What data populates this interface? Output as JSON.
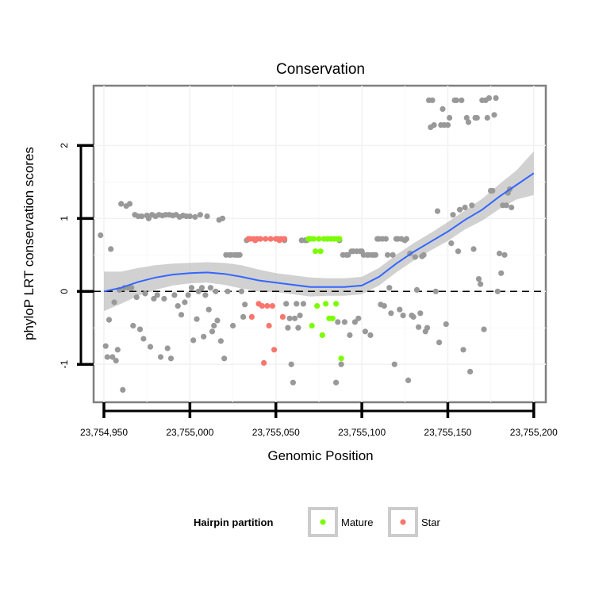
{
  "chart_data": {
    "type": "scatter",
    "title": "Conservation",
    "xlabel": "Genomic Position",
    "ylabel": "phyloP LRT conservation scores",
    "xlim": [
      23754944,
      23755207
    ],
    "ylim": [
      -1.52,
      2.82
    ],
    "x_ticks": [
      23754950,
      23755000,
      23755050,
      23755100,
      23755150,
      23755200
    ],
    "x_tick_labels": [
      "23,754,950",
      "23,755,000",
      "23,755,050",
      "23,755,100",
      "23,755,150",
      "23,755,200"
    ],
    "y_ticks": [
      -1,
      0,
      1,
      2
    ],
    "y_tick_labels": [
      "-1",
      "0",
      "1",
      "2"
    ],
    "reference_line": {
      "y": 0,
      "style": "dashed"
    },
    "legend": {
      "title": "Hairpin partition",
      "position": "bottom",
      "entries": [
        {
          "label": "Mature",
          "color": "#7cfc00"
        },
        {
          "label": "Star",
          "color": "#f8766d"
        }
      ]
    },
    "colors": {
      "other": "#999999",
      "mature": "#7cfc00",
      "star": "#f8766d",
      "smooth_line": "#3366ff",
      "confidence_band": "#bdbdbd",
      "panel_border": "#7f7f7f"
    },
    "series": [
      {
        "name": "Other",
        "points": [
          [
            23754948,
            0.77
          ],
          [
            23754951,
            -0.75
          ],
          [
            23754952,
            -0.9
          ],
          [
            23754953,
            -0.39
          ],
          [
            23754954,
            0.58
          ],
          [
            23754955,
            -0.9
          ],
          [
            23754956,
            -0.15
          ],
          [
            23754957,
            -0.95
          ],
          [
            23754958,
            -0.8
          ],
          [
            23754959,
            0.02
          ],
          [
            23754960,
            1.2
          ],
          [
            23754961,
            -1.35
          ],
          [
            23754962,
            0.05
          ],
          [
            23754963,
            1.17
          ],
          [
            23754964,
            0.05
          ],
          [
            23754965,
            1.2
          ],
          [
            23754966,
            0.05
          ],
          [
            23754967,
            -0.47
          ],
          [
            23754968,
            1.05
          ],
          [
            23754969,
            -0.08
          ],
          [
            23754970,
            1.03
          ],
          [
            23754971,
            -0.52
          ],
          [
            23754972,
            1.03
          ],
          [
            23754973,
            -0.65
          ],
          [
            23754974,
            -0.03
          ],
          [
            23754975,
            1.04
          ],
          [
            23754976,
            1.0
          ],
          [
            23754977,
            -0.76
          ],
          [
            23754978,
            1.05
          ],
          [
            23754979,
            -0.1
          ],
          [
            23754980,
            1.03
          ],
          [
            23754981,
            -0.05
          ],
          [
            23754982,
            1.05
          ],
          [
            23754983,
            -0.9
          ],
          [
            23754984,
            1.04
          ],
          [
            23754985,
            -0.1
          ],
          [
            23754986,
            1.05
          ],
          [
            23754987,
            -0.78
          ],
          [
            23754988,
            1.05
          ],
          [
            23754989,
            -0.92
          ],
          [
            23754990,
            1.04
          ],
          [
            23754991,
            -0.05
          ],
          [
            23754992,
            1.05
          ],
          [
            23754993,
            -0.2
          ],
          [
            23754994,
            1.02
          ],
          [
            23754995,
            -0.32
          ],
          [
            23754996,
            1.04
          ],
          [
            23754997,
            -0.15
          ],
          [
            23754998,
            1.03
          ],
          [
            23754999,
            -0.05
          ],
          [
            23755000,
            1.03
          ],
          [
            23755001,
            0.05
          ],
          [
            23755002,
            -0.67
          ],
          [
            23755003,
            1.02
          ],
          [
            23755004,
            -0.38
          ],
          [
            23755005,
            0.0
          ],
          [
            23755006,
            1.05
          ],
          [
            23755007,
            0.05
          ],
          [
            23755008,
            -0.62
          ],
          [
            23755009,
            -0.05
          ],
          [
            23755010,
            1.03
          ],
          [
            23755011,
            -0.25
          ],
          [
            23755012,
            0.05
          ],
          [
            23755013,
            -0.55
          ],
          [
            23755014,
            -0.47
          ],
          [
            23755015,
            0.0
          ],
          [
            23755016,
            -0.4
          ],
          [
            23755017,
            0.98
          ],
          [
            23755018,
            -0.68
          ],
          [
            23755019,
            1.0
          ],
          [
            23755020,
            -0.92
          ],
          [
            23755021,
            0.5
          ],
          [
            23755022,
            0.0
          ],
          [
            23755023,
            0.5
          ],
          [
            23755024,
            0.5
          ],
          [
            23755025,
            -0.47
          ],
          [
            23755026,
            0.5
          ],
          [
            23755027,
            0.5
          ],
          [
            23755028,
            0.5
          ],
          [
            23755029,
            0.5
          ],
          [
            23755030,
            0.0
          ],
          [
            23755031,
            -0.35
          ],
          [
            23755032,
            -0.18
          ],
          [
            23755033,
            0.7
          ],
          [
            23755055,
            0.7
          ],
          [
            23755056,
            -0.17
          ],
          [
            23755057,
            -0.5
          ],
          [
            23755058,
            -0.37
          ],
          [
            23755059,
            -1.0
          ],
          [
            23755060,
            -1.25
          ],
          [
            23755061,
            -0.37
          ],
          [
            23755062,
            -0.17
          ],
          [
            23755063,
            -0.5
          ],
          [
            23755064,
            -0.33
          ],
          [
            23755065,
            0.7
          ],
          [
            23755066,
            -0.17
          ],
          [
            23755067,
            0.7
          ],
          [
            23755068,
            0.7
          ],
          [
            23755085,
            -1.25
          ],
          [
            23755086,
            -0.42
          ],
          [
            23755087,
            0.7
          ],
          [
            23755088,
            -1.0
          ],
          [
            23755089,
            0.5
          ],
          [
            23755090,
            -0.42
          ],
          [
            23755091,
            0.5
          ],
          [
            23755092,
            0.5
          ],
          [
            23755093,
            -0.6
          ],
          [
            23755094,
            0.55
          ],
          [
            23755095,
            0.55
          ],
          [
            23755096,
            -0.42
          ],
          [
            23755097,
            0.55
          ],
          [
            23755098,
            -0.37
          ],
          [
            23755099,
            0.55
          ],
          [
            23755100,
            0.55
          ],
          [
            23755101,
            0.5
          ],
          [
            23755102,
            -0.55
          ],
          [
            23755103,
            0.5
          ],
          [
            23755104,
            0.5
          ],
          [
            23755105,
            -0.6
          ],
          [
            23755106,
            0.5
          ],
          [
            23755107,
            0.5
          ],
          [
            23755108,
            0.5
          ],
          [
            23755109,
            0.72
          ],
          [
            23755110,
            0.72
          ],
          [
            23755111,
            -0.18
          ],
          [
            23755112,
            0.72
          ],
          [
            23755113,
            -0.2
          ],
          [
            23755114,
            0.72
          ],
          [
            23755115,
            0.5
          ],
          [
            23755116,
            0.05
          ],
          [
            23755117,
            -0.3
          ],
          [
            23755118,
            0.5
          ],
          [
            23755119,
            -1.0
          ],
          [
            23755120,
            0.72
          ],
          [
            23755121,
            0.72
          ],
          [
            23755122,
            -0.25
          ],
          [
            23755123,
            0.72
          ],
          [
            23755124,
            -0.33
          ],
          [
            23755125,
            0.7
          ],
          [
            23755126,
            0.72
          ],
          [
            23755127,
            -1.22
          ],
          [
            23755128,
            0.52
          ],
          [
            23755129,
            -0.33
          ],
          [
            23755130,
            -0.35
          ],
          [
            23755131,
            0.47
          ],
          [
            23755132,
            0.02
          ],
          [
            23755133,
            -0.49
          ],
          [
            23755134,
            -0.3
          ],
          [
            23755135,
            0.48
          ],
          [
            23755136,
            0.5
          ],
          [
            23755137,
            -0.55
          ],
          [
            23755138,
            -0.5
          ],
          [
            23755139,
            2.62
          ],
          [
            23755140,
            2.25
          ],
          [
            23755141,
            2.62
          ],
          [
            23755142,
            2.28
          ],
          [
            23755143,
            0.0
          ],
          [
            23755144,
            1.1
          ],
          [
            23755145,
            -0.7
          ],
          [
            23755146,
            2.28
          ],
          [
            23755147,
            2.5
          ],
          [
            23755148,
            2.28
          ],
          [
            23755149,
            -0.45
          ],
          [
            23755150,
            2.28
          ],
          [
            23755151,
            2.38
          ],
          [
            23755152,
            0.66
          ],
          [
            23755153,
            1.05
          ],
          [
            23755154,
            2.62
          ],
          [
            23755155,
            2.62
          ],
          [
            23755156,
            0.55
          ],
          [
            23755157,
            1.12
          ],
          [
            23755158,
            2.62
          ],
          [
            23755159,
            -0.8
          ],
          [
            23755160,
            1.15
          ],
          [
            23755161,
            2.38
          ],
          [
            23755162,
            2.32
          ],
          [
            23755163,
            -1.1
          ],
          [
            23755164,
            1.18
          ],
          [
            23755165,
            0.58
          ],
          [
            23755166,
            2.38
          ],
          [
            23755167,
            2.38
          ],
          [
            23755168,
            0.17
          ],
          [
            23755169,
            0.1
          ],
          [
            23755170,
            2.62
          ],
          [
            23755171,
            -0.52
          ],
          [
            23755172,
            2.62
          ],
          [
            23755173,
            2.38
          ],
          [
            23755174,
            2.65
          ],
          [
            23755175,
            1.38
          ],
          [
            23755176,
            1.38
          ],
          [
            23755177,
            2.42
          ],
          [
            23755178,
            2.65
          ],
          [
            23755179,
            0.0
          ],
          [
            23755180,
            0.52
          ],
          [
            23755181,
            0.25
          ],
          [
            23755182,
            1.18
          ],
          [
            23755183,
            0.5
          ],
          [
            23755184,
            1.18
          ],
          [
            23755185,
            1.35
          ],
          [
            23755186,
            1.4
          ],
          [
            23755187,
            1.15
          ]
        ]
      },
      {
        "name": "Mature",
        "points": [
          [
            23755069,
            0.72
          ],
          [
            23755070,
            0.72
          ],
          [
            23755071,
            -0.47
          ],
          [
            23755072,
            0.72
          ],
          [
            23755073,
            0.55
          ],
          [
            23755074,
            -0.2
          ],
          [
            23755075,
            0.72
          ],
          [
            23755076,
            0.55
          ],
          [
            23755077,
            -0.6
          ],
          [
            23755078,
            0.72
          ],
          [
            23755079,
            -0.17
          ],
          [
            23755080,
            0.72
          ],
          [
            23755081,
            -0.37
          ],
          [
            23755082,
            0.72
          ],
          [
            23755083,
            -0.37
          ],
          [
            23755084,
            0.72
          ],
          [
            23755085,
            -0.17
          ],
          [
            23755086,
            0.72
          ],
          [
            23755087,
            0.72
          ],
          [
            23755088,
            -0.92
          ]
        ]
      },
      {
        "name": "Star",
        "points": [
          [
            23755034,
            0.72
          ],
          [
            23755035,
            0.72
          ],
          [
            23755036,
            -0.35
          ],
          [
            23755037,
            0.72
          ],
          [
            23755038,
            0.7
          ],
          [
            23755039,
            0.72
          ],
          [
            23755040,
            -0.17
          ],
          [
            23755041,
            0.72
          ],
          [
            23755042,
            -0.2
          ],
          [
            23755043,
            -0.98
          ],
          [
            23755044,
            0.72
          ],
          [
            23755045,
            -0.2
          ],
          [
            23755046,
            -0.47
          ],
          [
            23755047,
            0.72
          ],
          [
            23755048,
            -0.2
          ],
          [
            23755049,
            -0.8
          ],
          [
            23755050,
            0.72
          ],
          [
            23755051,
            0.72
          ],
          [
            23755052,
            0.7
          ],
          [
            23755053,
            0.72
          ],
          [
            23755054,
            -0.35
          ],
          [
            23755055,
            0.72
          ]
        ]
      }
    ],
    "smooth": {
      "x": [
        23754950,
        23754960,
        23754970,
        23754980,
        23754990,
        23755000,
        23755010,
        23755020,
        23755030,
        23755040,
        23755050,
        23755060,
        23755070,
        23755080,
        23755090,
        23755100,
        23755110,
        23755120,
        23755130,
        23755140,
        23755150,
        23755160,
        23755170,
        23755180,
        23755190,
        23755200
      ],
      "y": [
        0.0,
        0.05,
        0.13,
        0.19,
        0.23,
        0.25,
        0.26,
        0.24,
        0.2,
        0.15,
        0.12,
        0.09,
        0.06,
        0.06,
        0.06,
        0.08,
        0.2,
        0.38,
        0.54,
        0.68,
        0.82,
        0.98,
        1.12,
        1.3,
        1.46,
        1.62
      ],
      "upper": [
        0.27,
        0.27,
        0.32,
        0.36,
        0.38,
        0.39,
        0.4,
        0.39,
        0.36,
        0.3,
        0.25,
        0.22,
        0.19,
        0.18,
        0.18,
        0.2,
        0.32,
        0.5,
        0.66,
        0.8,
        0.95,
        1.11,
        1.27,
        1.47,
        1.66,
        1.92
      ],
      "lower": [
        -0.27,
        -0.17,
        -0.06,
        0.02,
        0.08,
        0.11,
        0.12,
        0.09,
        0.04,
        0.0,
        -0.01,
        -0.04,
        -0.07,
        -0.06,
        -0.06,
        -0.04,
        0.08,
        0.26,
        0.42,
        0.56,
        0.69,
        0.85,
        0.97,
        1.13,
        1.26,
        1.32
      ]
    }
  }
}
